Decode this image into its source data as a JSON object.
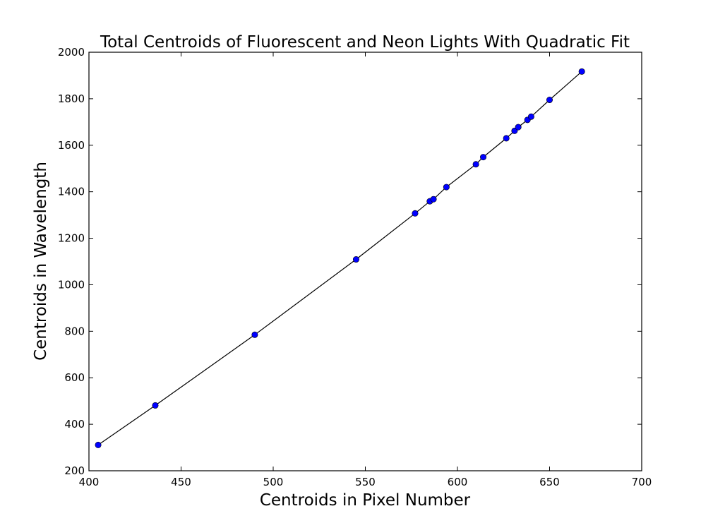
{
  "chart_data": {
    "type": "scatter",
    "title": "Total Centroids of Fluorescent and Neon Lights With Quadratic Fit",
    "xlabel": "Centroids in Pixel Number",
    "ylabel": "Centroids in Wavelength",
    "xlim": [
      400,
      700
    ],
    "ylim": [
      200,
      2000
    ],
    "xticks": [
      "400",
      "450",
      "500",
      "550",
      "600",
      "650",
      "700"
    ],
    "yticks": [
      "200",
      "400",
      "600",
      "800",
      "1000",
      "1200",
      "1400",
      "1600",
      "1800",
      "2000"
    ],
    "grid": false,
    "series": [
      {
        "marker_color": "#0000ff",
        "line_color": "#000000",
        "points": [
          {
            "x": 405.0,
            "y": 311
          },
          {
            "x": 436.0,
            "y": 481
          },
          {
            "x": 490.0,
            "y": 785
          },
          {
            "x": 545.0,
            "y": 1109
          },
          {
            "x": 577.0,
            "y": 1307
          },
          {
            "x": 585.0,
            "y": 1359
          },
          {
            "x": 587.0,
            "y": 1368
          },
          {
            "x": 594.0,
            "y": 1420
          },
          {
            "x": 610.0,
            "y": 1518
          },
          {
            "x": 614.0,
            "y": 1549
          },
          {
            "x": 626.5,
            "y": 1630
          },
          {
            "x": 631.0,
            "y": 1662
          },
          {
            "x": 633.0,
            "y": 1678
          },
          {
            "x": 638.0,
            "y": 1709
          },
          {
            "x": 640.0,
            "y": 1723
          },
          {
            "x": 650.0,
            "y": 1795
          },
          {
            "x": 667.5,
            "y": 1917
          }
        ]
      }
    ]
  }
}
